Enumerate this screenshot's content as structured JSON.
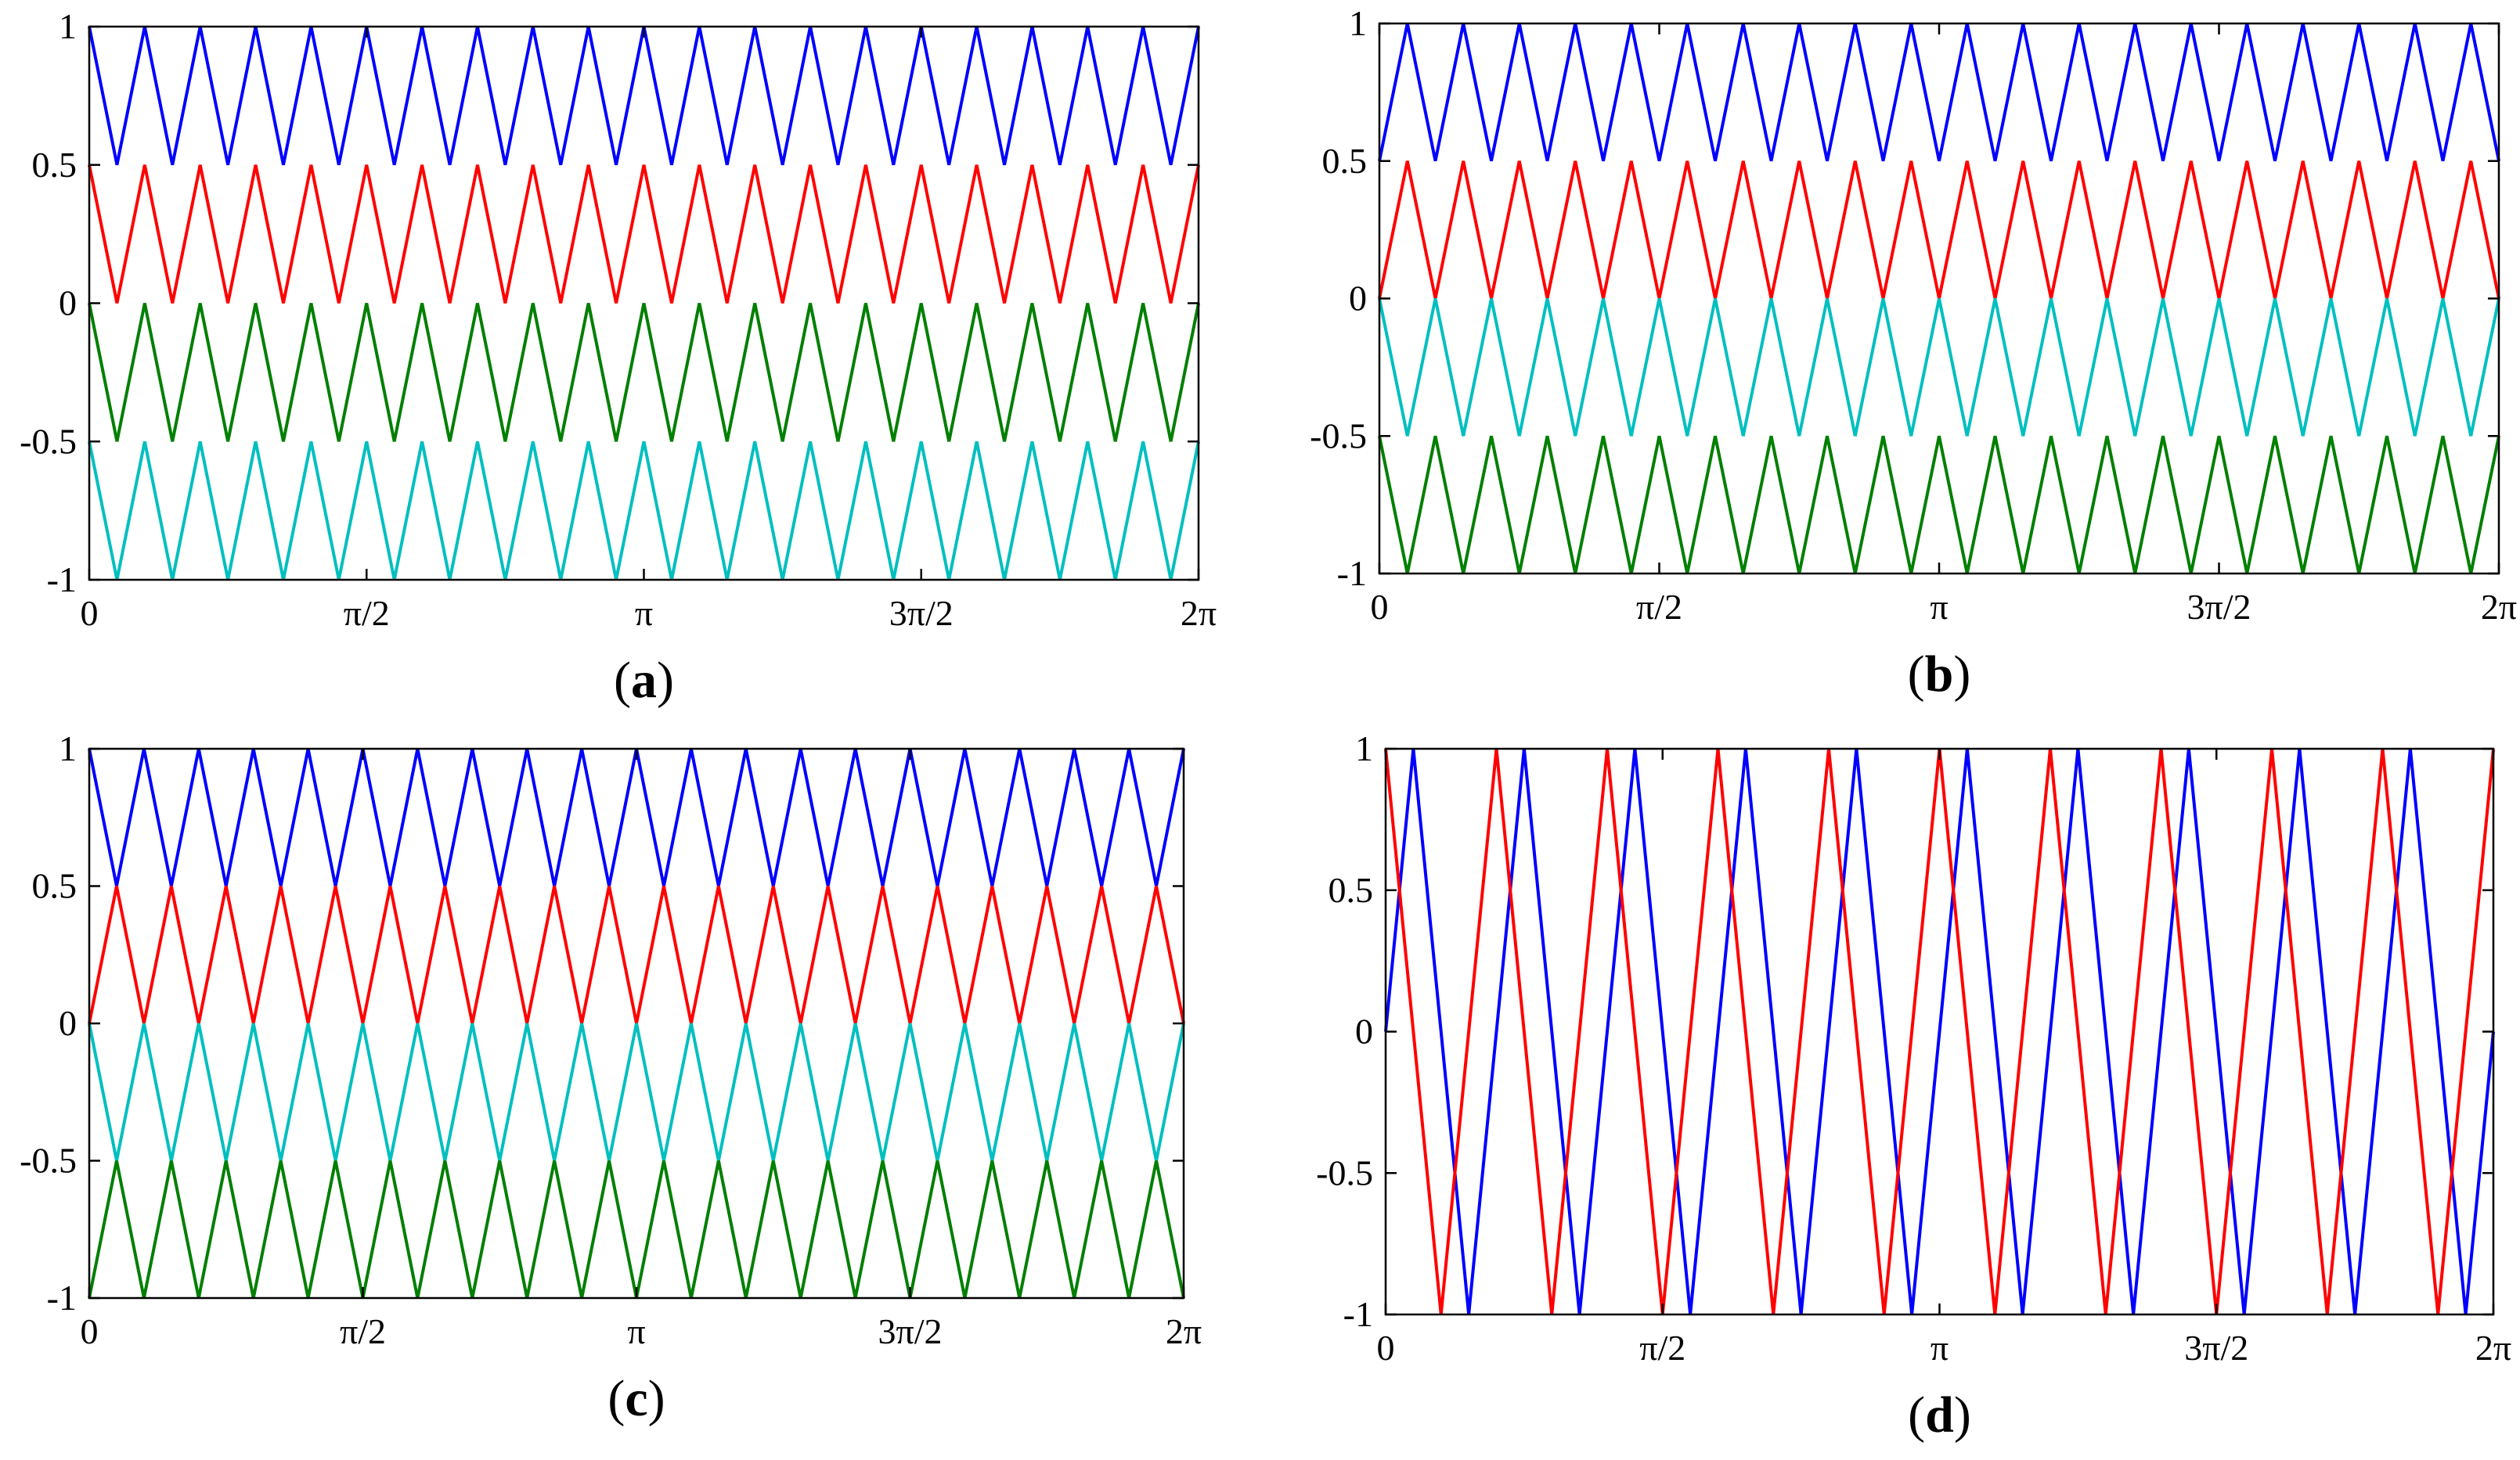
{
  "chart_data": [
    {
      "panel": "a",
      "caption_letter": "a",
      "type": "line",
      "xlim": [
        0,
        6.283185307179586
      ],
      "ylim": [
        -1,
        1
      ],
      "xtick_labels": [
        "0",
        "π/2",
        "π",
        "3π/2",
        "2π"
      ],
      "ytick_labels": [
        "1",
        "0.5",
        "0",
        "-0.5",
        "-1"
      ],
      "grid": false,
      "carrier_periods": 20,
      "series": [
        {
          "color": "#0000ff",
          "min": 0.5,
          "max": 1,
          "phase_deg": 0
        },
        {
          "color": "#ff0000",
          "min": 0,
          "max": 0.5,
          "phase_deg": 0
        },
        {
          "color": "#007f00",
          "min": -0.5,
          "max": 0,
          "phase_deg": 0
        },
        {
          "color": "#00bfbf",
          "min": -1,
          "max": -0.5,
          "phase_deg": 0
        }
      ]
    },
    {
      "panel": "b",
      "caption_letter": "b",
      "type": "line",
      "xlim": [
        0,
        6.283185307179586
      ],
      "ylim": [
        -1,
        1
      ],
      "xtick_labels": [
        "0",
        "π/2",
        "π",
        "3π/2",
        "2π"
      ],
      "ytick_labels": [
        "1",
        "0.5",
        "0",
        "-0.5",
        "-1"
      ],
      "grid": false,
      "carrier_periods": 20,
      "series": [
        {
          "color": "#0000ff",
          "min": 0.5,
          "max": 1,
          "phase_deg": 180
        },
        {
          "color": "#ff0000",
          "min": 0,
          "max": 0.5,
          "phase_deg": 180
        },
        {
          "color": "#00bfbf",
          "min": -0.5,
          "max": 0,
          "phase_deg": 0
        },
        {
          "color": "#007f00",
          "min": -1,
          "max": -0.5,
          "phase_deg": 0
        }
      ]
    },
    {
      "panel": "c",
      "caption_letter": "c",
      "type": "line",
      "xlim": [
        0,
        6.283185307179586
      ],
      "ylim": [
        -1,
        1
      ],
      "xtick_labels": [
        "0",
        "π/2",
        "π",
        "3π/2",
        "2π"
      ],
      "ytick_labels": [
        "1",
        "0.5",
        "0",
        "-0.5",
        "-1"
      ],
      "grid": false,
      "carrier_periods": 20,
      "series": [
        {
          "color": "#0000ff",
          "min": 0.5,
          "max": 1,
          "phase_deg": 0
        },
        {
          "color": "#ff0000",
          "min": 0,
          "max": 0.5,
          "phase_deg": 180
        },
        {
          "color": "#00bfbf",
          "min": -0.5,
          "max": 0,
          "phase_deg": 0
        },
        {
          "color": "#007f00",
          "min": -1,
          "max": -0.5,
          "phase_deg": 180
        }
      ]
    },
    {
      "panel": "d",
      "caption_letter": "d",
      "type": "line",
      "xlim": [
        0,
        6.283185307179586
      ],
      "ylim": [
        -1,
        1
      ],
      "xtick_labels": [
        "0",
        "π/2",
        "π",
        "3π/2",
        "2π"
      ],
      "ytick_labels": [
        "1",
        "0.5",
        "0",
        "-0.5",
        "-1"
      ],
      "grid": false,
      "carrier_periods": 10,
      "series": [
        {
          "color": "#0000ff",
          "min": -1,
          "max": 1,
          "phase_deg": 90
        },
        {
          "color": "#ff0000",
          "min": -1,
          "max": 1,
          "phase_deg": 0
        }
      ]
    }
  ]
}
